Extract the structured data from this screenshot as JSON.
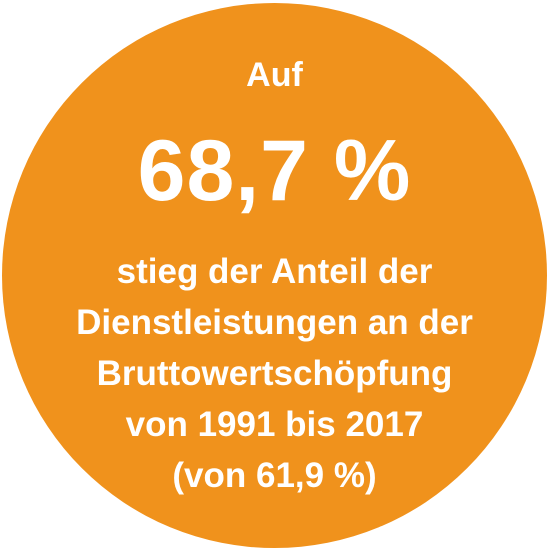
{
  "badge": {
    "color": "#F0921C",
    "text_color": "#FFFFFF",
    "intro": "Auf",
    "value": "68,7 %",
    "lines": [
      "stieg der Anteil der",
      "Dienstleistungen an der",
      "Bruttowertschöpfung",
      "von 1991 bis 2017",
      "(von 61,9 %)"
    ]
  }
}
